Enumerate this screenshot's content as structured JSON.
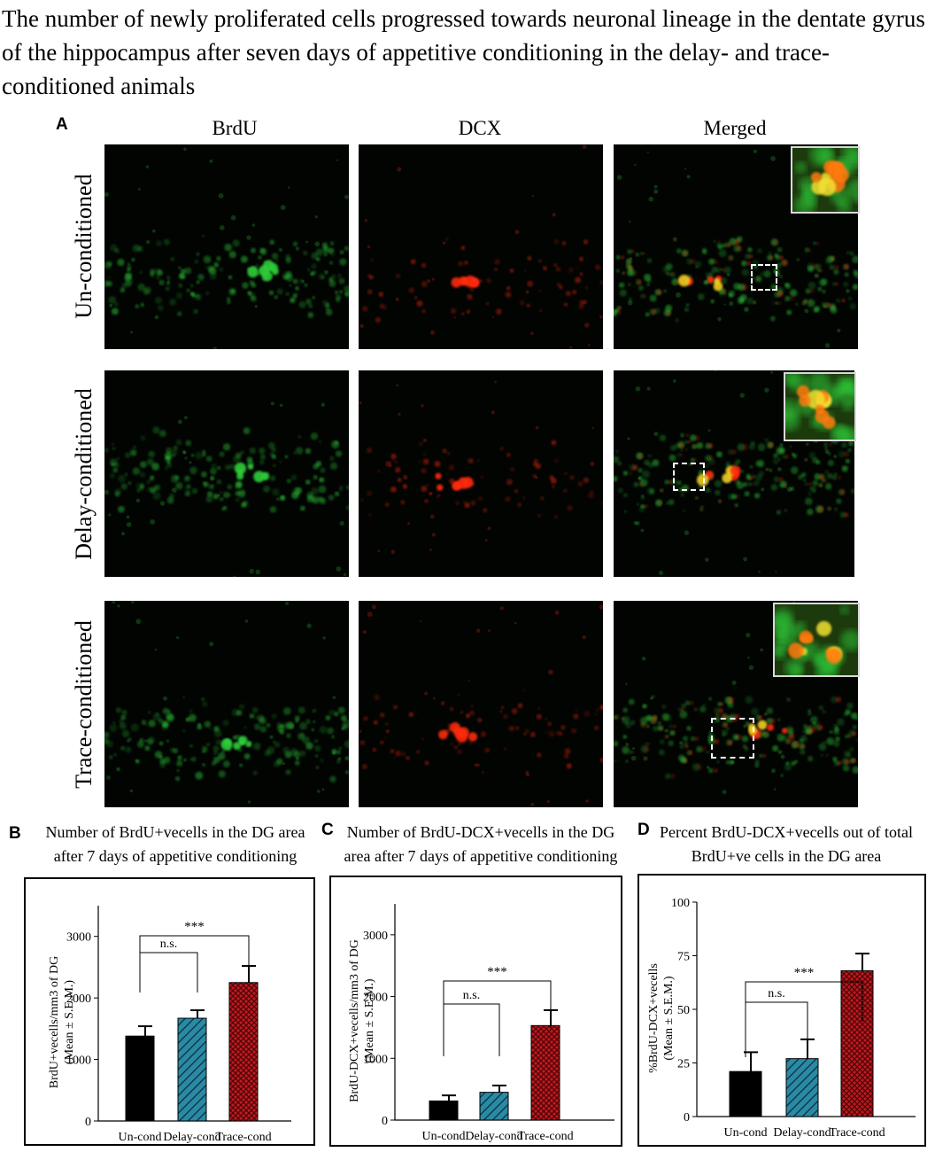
{
  "title": "The number of newly proliferated cells progressed towards neuronal lineage in the dentate gyrus of the hippocampus after seven days of appetitive conditioning in the delay- and trace-conditioned animals",
  "panel_a": {
    "label": "A",
    "columns": [
      "BrdU",
      "DCX",
      "Merged"
    ],
    "rows": [
      "Un-conditioned",
      "Delay-conditioned",
      "Trace-conditioned"
    ]
  },
  "panels": {
    "b": {
      "label": "B",
      "title_lines": [
        "Number of BrdU+vecells in the DG area",
        "after 7 days of appetitive conditioning"
      ]
    },
    "c": {
      "label": "C",
      "title_lines": [
        "Number of  BrdU-DCX+vecells in the DG",
        "area after 7 days of appetitive conditioning"
      ]
    },
    "d": {
      "label": "D",
      "title_lines": [
        "Percent BrdU-DCX+vecells out of total",
        "BrdU+ve cells in the DG area"
      ]
    }
  },
  "colors": {
    "un_cond": "#000000",
    "delay_cond": "#2a8aa5",
    "trace_cond": "#c0181e",
    "brdu": "#2fcf3a",
    "dcx": "#ff2a10"
  },
  "chart_data": [
    {
      "type": "bar",
      "panel": "B",
      "categories": [
        "Un-cond",
        "Delay-cond",
        "Trace-cond"
      ],
      "values": [
        1380,
        1670,
        2250
      ],
      "errors": [
        160,
        130,
        270
      ],
      "ylabel": "BrdU+vecells/mm3  of DG (Mean ± S.E.M.)",
      "ylim": [
        0,
        3500
      ],
      "yticks": [
        0,
        1000,
        2000,
        3000
      ],
      "significance": [
        {
          "from": 0,
          "to": 1,
          "label": "n.s."
        },
        {
          "from": 0,
          "to": 2,
          "label": "***"
        }
      ]
    },
    {
      "type": "bar",
      "panel": "C",
      "categories": [
        "Un-cond",
        "Delay-cond",
        "Trace-cond"
      ],
      "values": [
        310,
        450,
        1530
      ],
      "errors": [
        90,
        110,
        250
      ],
      "ylabel": "BrdU-DCX+vecells/mm3 of DG (Mean ± S.E.M.)",
      "ylim": [
        0,
        3500
      ],
      "yticks": [
        0,
        1000,
        2000,
        3000
      ],
      "significance": [
        {
          "from": 0,
          "to": 1,
          "label": "n.s."
        },
        {
          "from": 0,
          "to": 2,
          "label": "***"
        }
      ]
    },
    {
      "type": "bar",
      "panel": "D",
      "categories": [
        "Un-cond",
        "Delay-cond",
        "Trace-cond"
      ],
      "values": [
        21,
        27,
        68
      ],
      "errors": [
        9,
        9,
        8
      ],
      "ylabel": "%BrdU-DCX+vecells (Mean ± S.E.M.)",
      "ylim": [
        0,
        100
      ],
      "yticks": [
        0,
        25,
        50,
        75,
        100
      ],
      "significance": [
        {
          "from": 0,
          "to": 1,
          "label": "n.s."
        },
        {
          "from": 0,
          "to": 2,
          "label": "***"
        }
      ]
    }
  ]
}
